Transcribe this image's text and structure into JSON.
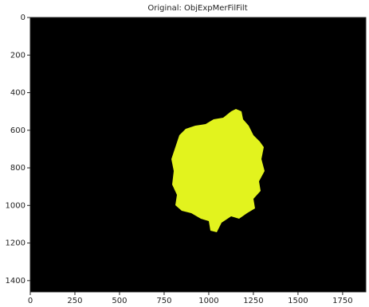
{
  "chart_data": {
    "type": "image",
    "title": "Original: ObjExpMerFilFilt",
    "xlim": [
      0,
      1880
    ],
    "ylim": [
      1460,
      0
    ],
    "xticks": [
      0,
      250,
      500,
      750,
      1000,
      1250,
      1500,
      1750
    ],
    "yticks": [
      0,
      200,
      400,
      600,
      800,
      1000,
      1200,
      1400
    ],
    "background": "#000000",
    "color": "#e2f31e"
  }
}
